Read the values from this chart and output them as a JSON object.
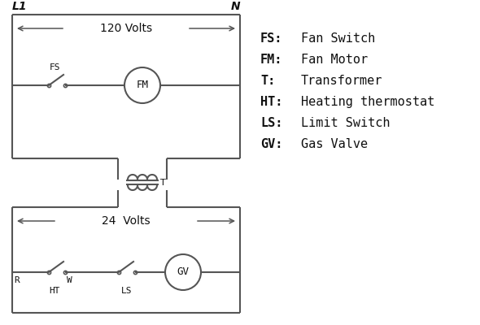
{
  "bg_color": "#ffffff",
  "line_color": "#555555",
  "text_color": "#111111",
  "legend_items": [
    [
      "FS:",
      "Fan Switch"
    ],
    [
      "FM:",
      "Fan Motor"
    ],
    [
      "T:",
      "Transformer"
    ],
    [
      "HT:",
      "Heating thermostat"
    ],
    [
      "LS:",
      "Limit Switch"
    ],
    [
      "GV:",
      "Gas Valve"
    ]
  ],
  "L1_label": "L1",
  "N_label": "N",
  "volts120_label": "120 Volts",
  "volts24_label": "24  Volts",
  "T_label": "T",
  "R_label": "R",
  "W_label": "W",
  "HT_label": "HT",
  "LS_label": "LS",
  "FS_label": "FS",
  "FM_label": "FM",
  "GV_label": "GV"
}
